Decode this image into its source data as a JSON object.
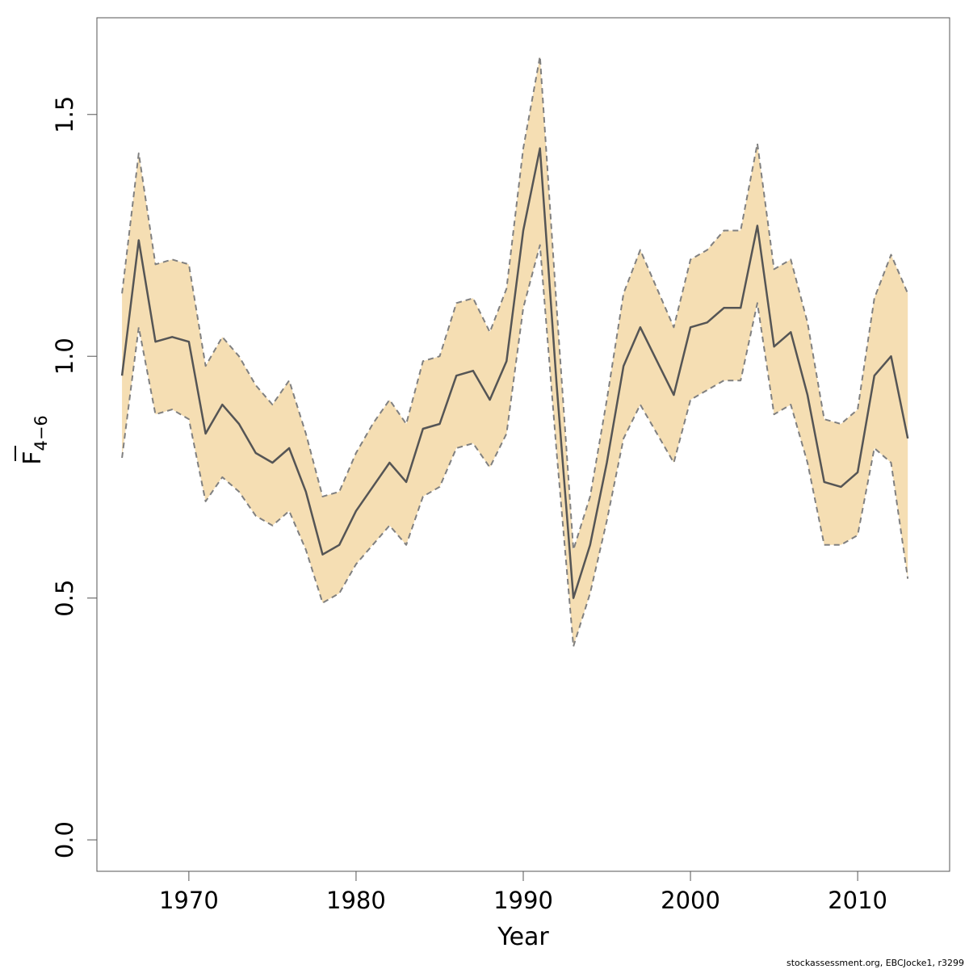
{
  "chart_data": {
    "type": "line",
    "xlabel": "Year",
    "ylabel": {
      "base": "F",
      "subscript": "4−6",
      "overline": true
    },
    "xlim": [
      1964.5,
      2015.5
    ],
    "ylim": [
      -0.065,
      1.7
    ],
    "xticks": [
      1970,
      1980,
      1990,
      2000,
      2010
    ],
    "xtick_labels": [
      "1970",
      "1980",
      "1990",
      "2000",
      "2010"
    ],
    "yticks": [
      0.0,
      0.5,
      1.0,
      1.5
    ],
    "ytick_labels": [
      "0.0",
      "0.5",
      "1.0",
      "1.5"
    ],
    "grid": false,
    "x": [
      1966,
      1967,
      1968,
      1969,
      1970,
      1971,
      1972,
      1973,
      1974,
      1975,
      1976,
      1977,
      1978,
      1979,
      1980,
      1981,
      1982,
      1983,
      1984,
      1985,
      1986,
      1987,
      1988,
      1989,
      1990,
      1991,
      1992,
      1993,
      1994,
      1995,
      1996,
      1997,
      1998,
      1999,
      2000,
      2001,
      2002,
      2003,
      2004,
      2005,
      2006,
      2007,
      2008,
      2009,
      2010,
      2011,
      2012,
      2013
    ],
    "series": [
      {
        "role": "estimate",
        "values": [
          0.96,
          1.24,
          1.03,
          1.04,
          1.03,
          0.84,
          0.9,
          0.86,
          0.8,
          0.78,
          0.81,
          0.72,
          0.59,
          0.61,
          0.68,
          0.73,
          0.78,
          0.74,
          0.85,
          0.86,
          0.96,
          0.97,
          0.91,
          0.99,
          1.26,
          1.43,
          0.94,
          0.5,
          0.61,
          0.78,
          0.98,
          1.06,
          0.99,
          0.92,
          1.06,
          1.07,
          1.1,
          1.1,
          1.27,
          1.02,
          1.05,
          0.92,
          0.74,
          0.73,
          0.76,
          0.96,
          1.0,
          0.83
        ]
      },
      {
        "role": "upper",
        "values": [
          1.13,
          1.42,
          1.19,
          1.2,
          1.19,
          0.98,
          1.04,
          1.0,
          0.94,
          0.9,
          0.95,
          0.84,
          0.71,
          0.72,
          0.8,
          0.86,
          0.91,
          0.86,
          0.99,
          1.0,
          1.11,
          1.12,
          1.05,
          1.14,
          1.43,
          1.62,
          1.1,
          0.6,
          0.71,
          0.91,
          1.13,
          1.22,
          1.14,
          1.06,
          1.2,
          1.22,
          1.26,
          1.26,
          1.44,
          1.18,
          1.2,
          1.07,
          0.87,
          0.86,
          0.89,
          1.12,
          1.21,
          1.13
        ]
      },
      {
        "role": "lower",
        "values": [
          0.79,
          1.06,
          0.88,
          0.89,
          0.87,
          0.7,
          0.75,
          0.72,
          0.67,
          0.65,
          0.68,
          0.6,
          0.49,
          0.51,
          0.57,
          0.61,
          0.65,
          0.61,
          0.71,
          0.73,
          0.81,
          0.82,
          0.77,
          0.84,
          1.1,
          1.23,
          0.8,
          0.4,
          0.51,
          0.66,
          0.83,
          0.9,
          0.84,
          0.78,
          0.91,
          0.93,
          0.95,
          0.95,
          1.11,
          0.88,
          0.9,
          0.78,
          0.61,
          0.61,
          0.63,
          0.81,
          0.78,
          0.54
        ]
      }
    ],
    "band_color": "#F5DEB3",
    "line_color": "#555555",
    "bound_color": "#808080"
  },
  "footer": {
    "credit": "stockassessment.org, EBCJocke1, r3299"
  }
}
